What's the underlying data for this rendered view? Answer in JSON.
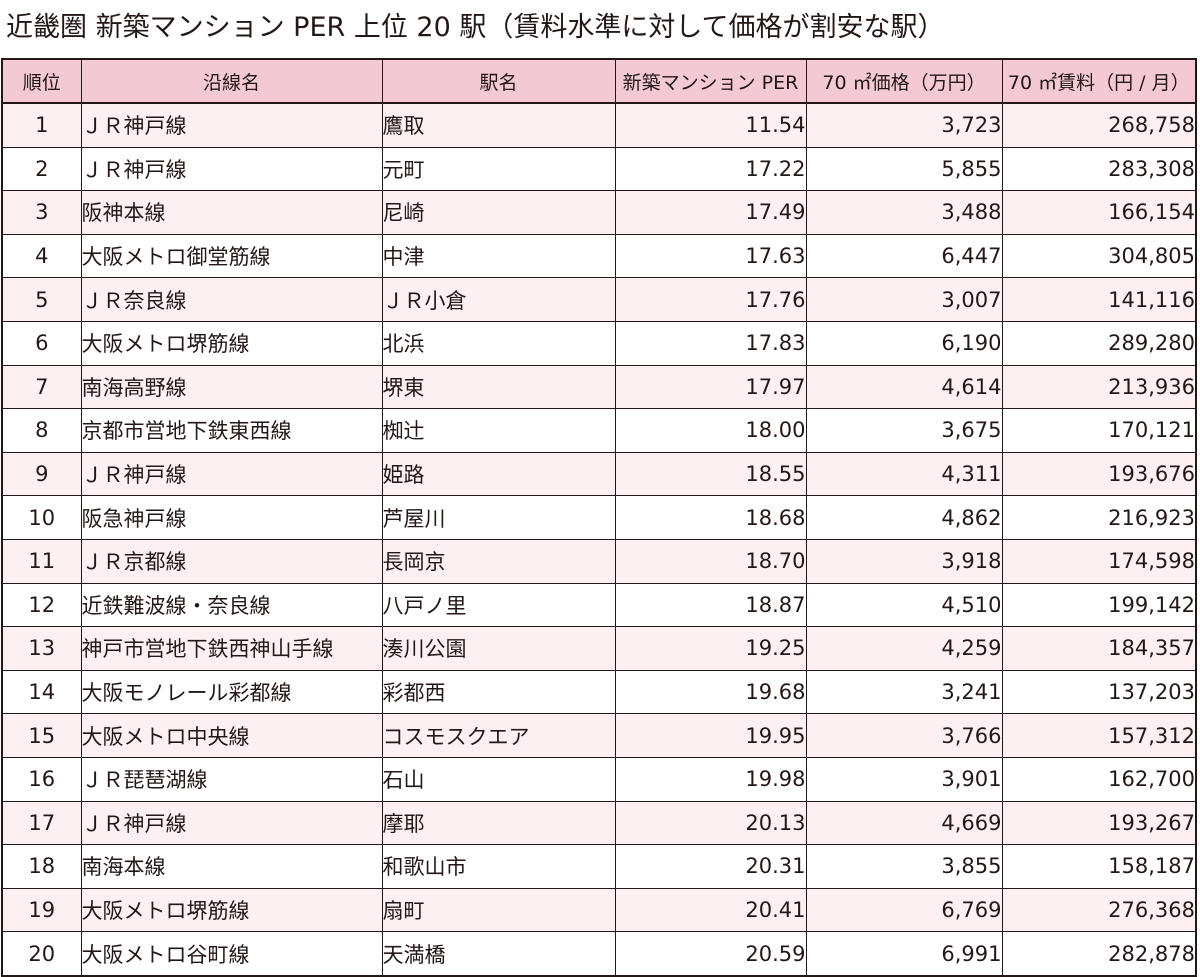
{
  "title": "近畿圏 新築マンション PER 上位 20 駅（賃料水準に対して価格が割安な駅）",
  "table": {
    "headers": [
      "順位",
      "沿線名",
      "駅名",
      "新築マンション PER",
      "70 ㎡価格（万円）",
      "70 ㎡賃料（円 / 月）"
    ],
    "rows": [
      [
        "1",
        "ＪＲ神戸線",
        "鷹取",
        "11.54",
        "3,723",
        "268,758"
      ],
      [
        "2",
        "ＪＲ神戸線",
        "元町",
        "17.22",
        "5,855",
        "283,308"
      ],
      [
        "3",
        "阪神本線",
        "尼崎",
        "17.49",
        "3,488",
        "166,154"
      ],
      [
        "4",
        "大阪メトロ御堂筋線",
        "中津",
        "17.63",
        "6,447",
        "304,805"
      ],
      [
        "5",
        "ＪＲ奈良線",
        "ＪＲ小倉",
        "17.76",
        "3,007",
        "141,116"
      ],
      [
        "6",
        "大阪メトロ堺筋線",
        "北浜",
        "17.83",
        "6,190",
        "289,280"
      ],
      [
        "7",
        "南海高野線",
        "堺東",
        "17.97",
        "4,614",
        "213,936"
      ],
      [
        "8",
        "京都市営地下鉄東西線",
        "椥辻",
        "18.00",
        "3,675",
        "170,121"
      ],
      [
        "9",
        "ＪＲ神戸線",
        "姫路",
        "18.55",
        "4,311",
        "193,676"
      ],
      [
        "10",
        "阪急神戸線",
        "芦屋川",
        "18.68",
        "4,862",
        "216,923"
      ],
      [
        "11",
        "ＪＲ京都線",
        "長岡京",
        "18.70",
        "3,918",
        "174,598"
      ],
      [
        "12",
        "近鉄難波線・奈良線",
        "八戸ノ里",
        "18.87",
        "4,510",
        "199,142"
      ],
      [
        "13",
        "神戸市営地下鉄西神山手線",
        "湊川公園",
        "19.25",
        "4,259",
        "184,357"
      ],
      [
        "14",
        "大阪モノレール彩都線",
        "彩都西",
        "19.68",
        "3,241",
        "137,203"
      ],
      [
        "15",
        "大阪メトロ中央線",
        "コスモスクエア",
        "19.95",
        "3,766",
        "157,312"
      ],
      [
        "16",
        "ＪＲ琵琶湖線",
        "石山",
        "19.98",
        "3,901",
        "162,700"
      ],
      [
        "17",
        "ＪＲ神戸線",
        "摩耶",
        "20.13",
        "4,669",
        "193,267"
      ],
      [
        "18",
        "南海本線",
        "和歌山市",
        "20.31",
        "3,855",
        "158,187"
      ],
      [
        "19",
        "大阪メトロ堺筋線",
        "扇町",
        "20.41",
        "6,769",
        "276,368"
      ],
      [
        "20",
        "大阪メトロ谷町線",
        "天満橋",
        "20.59",
        "6,991",
        "282,878"
      ]
    ]
  },
  "colors": {
    "header_bg": "#f3c9d3",
    "odd_row_bg": "#fdf0f2",
    "even_row_bg": "#ffffff",
    "border": "#231815",
    "text": "#231815"
  }
}
